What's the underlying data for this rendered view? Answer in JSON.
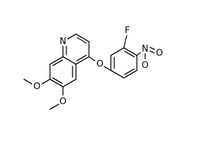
{
  "atoms": [
    {
      "label": "N"
    },
    {
      "label": "O"
    },
    {
      "label": "O"
    },
    {
      "label": "O"
    },
    {
      "label": "F"
    },
    {
      "label": "N"
    },
    {
      "label": "O"
    },
    {
      "label": "O"
    }
  ]
}
